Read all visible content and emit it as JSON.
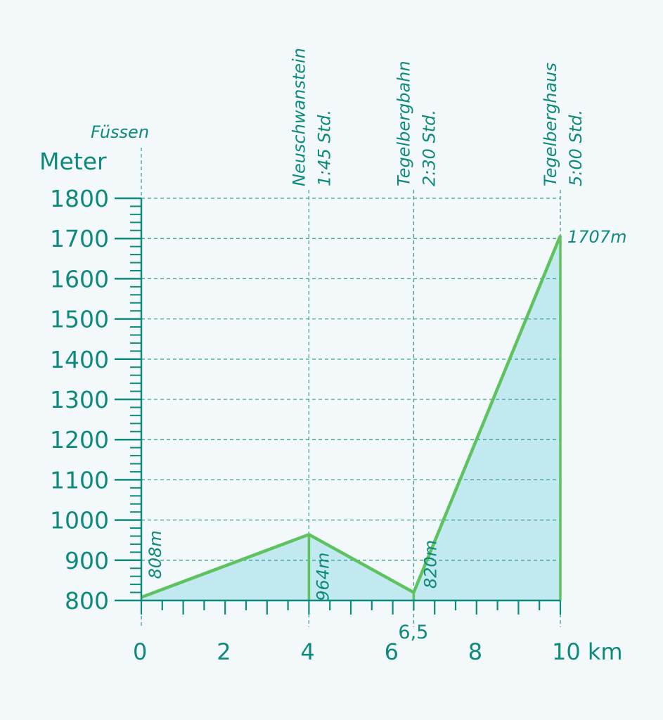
{
  "chart_data": {
    "type": "area",
    "ylabel": "Meter",
    "y_ticks": [
      "800",
      "900",
      "1000",
      "1100",
      "1200",
      "1300",
      "1400",
      "1500",
      "1600",
      "1700",
      "1800"
    ],
    "ylim": [
      800,
      1800
    ],
    "x_ticks": [
      "0",
      "2",
      "4",
      "6",
      "8",
      "10 km"
    ],
    "x_extra_tick": "6,5",
    "xlim": [
      0,
      10
    ],
    "profile": [
      {
        "x": 0,
        "y": 808
      },
      {
        "x": 4,
        "y": 964
      },
      {
        "x": 6.5,
        "y": 820
      },
      {
        "x": 10,
        "y": 1707
      }
    ],
    "elevation_labels": [
      {
        "x": 0,
        "label": "808m"
      },
      {
        "x": 4,
        "label": "964m"
      },
      {
        "x": 6.5,
        "label": "820m"
      },
      {
        "x": 10,
        "label": "1707m"
      }
    ],
    "waypoints": [
      {
        "x": 0,
        "name": "Füssen",
        "time": ""
      },
      {
        "x": 4,
        "name": "Neuschwanstein",
        "time": "1:45 Std."
      },
      {
        "x": 6.5,
        "name": "Tegelbergbahn",
        "time": "2:30 Std."
      },
      {
        "x": 10,
        "name": "Tegelberghaus",
        "time": "5:00 Std."
      }
    ],
    "grid": true,
    "colors": {
      "axis": "#0e8a7c",
      "line": "#5ec25f",
      "fill": "#bde6ee",
      "grid": "#3a9e92"
    }
  }
}
